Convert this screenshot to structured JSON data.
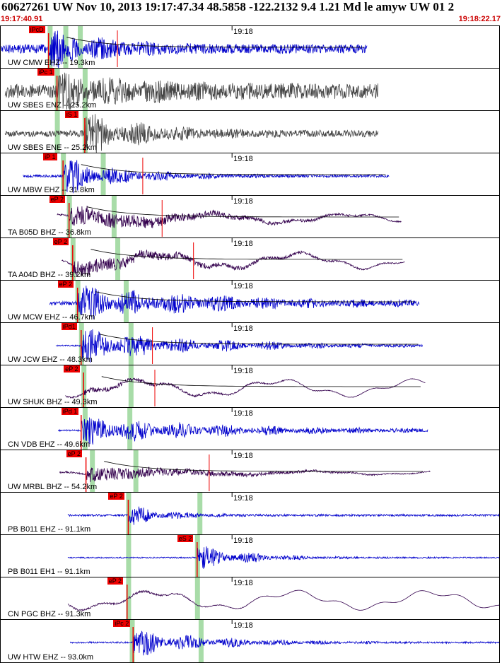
{
  "header": {
    "title": "60627261 UW Nov 10, 2013 19:17:47.34    48.5858 -122.2132  9.4 1.21 Md le amyw UW 01    2",
    "start_time": "19:17:40.91",
    "end_time": "19:18:22.17"
  },
  "colors": {
    "blue_trace": "#0000cc",
    "purple_trace": "#33004d",
    "gray_trace": "#444444",
    "phase_pick": "#ee0000",
    "green_marker": "#a8dca8",
    "coda_line": "#000000"
  },
  "traces": [
    {
      "label": "UW CMW EHZ -- 19.3km",
      "phase": "iPcD",
      "minute_label": "19:18",
      "color": "blue",
      "style": "noise",
      "pick_t": 3.9,
      "start_t": 0.0,
      "end_t": 30.3,
      "amp": 0.35,
      "burst": 1.0,
      "decay": 4.5,
      "greens": [
        4.0,
        5.3,
        6.5
      ],
      "red_tick_t": 9.6,
      "coda": true,
      "max_t": 7.5
    },
    {
      "label": "UW SBES ENZ -- 25.2km",
      "phase": "iPc 1",
      "minute_label": "",
      "color": "gray",
      "style": "noise",
      "pick_t": 4.6,
      "start_t": 0.3,
      "end_t": 31.2,
      "amp": 0.55,
      "burst": 0.7,
      "decay": 9.0,
      "greens": [
        4.6,
        6.9
      ],
      "red_tick_t": null,
      "coda": false,
      "max_t": 7.0
    },
    {
      "label": "UW SBES ENE -- 25.2km",
      "phase": "iS 1",
      "minute_label": "",
      "color": "gray",
      "style": "noise",
      "pick_t": 6.9,
      "start_t": 0.3,
      "end_t": 31.2,
      "amp": 0.25,
      "burst": 1.1,
      "decay": 5.0,
      "greens": [
        4.6,
        6.9
      ],
      "red_tick_t": null,
      "coda": false,
      "max_t": 7.5
    },
    {
      "label": "UW MBW EHZ -- 31.8km",
      "phase": "iP 1",
      "minute_label": "19:18",
      "color": "blue",
      "style": "noise",
      "pick_t": 5.1,
      "start_t": 1.8,
      "end_t": 32.1,
      "amp": 0.1,
      "burst": 1.0,
      "decay": 5.0,
      "greens": [
        5.1,
        8.4
      ],
      "red_tick_t": 11.7,
      "coda": true,
      "max_t": 8.8
    },
    {
      "label": "TA B05D BHZ -- 36.8km",
      "phase": "eP 2",
      "minute_label": "19:18",
      "color": "purple",
      "style": "wave",
      "pick_t": 5.6,
      "start_t": 4.6,
      "end_t": 33.1,
      "amp": 0.3,
      "burst": 0.75,
      "decay": 10.0,
      "greens": [
        5.6,
        9.3
      ],
      "red_tick_t": 13.3,
      "coda": true,
      "max_t": 10.0
    },
    {
      "label": "TA A04D BHZ -- 39.2km",
      "phase": "eP 2",
      "minute_label": "19:18",
      "color": "purple",
      "style": "wave",
      "pick_t": 5.9,
      "start_t": 5.0,
      "end_t": 33.4,
      "amp": 0.5,
      "burst": 0.6,
      "decay": 10.0,
      "greens": [
        5.9,
        9.6
      ],
      "red_tick_t": 15.9,
      "coda": true,
      "max_t": 13.7
    },
    {
      "label": "UW MCW EHZ -- 46.7km",
      "phase": "eP 2",
      "minute_label": "19:18",
      "color": "blue",
      "style": "noise",
      "pick_t": 6.3,
      "start_t": 4.0,
      "end_t": 34.6,
      "amp": 0.15,
      "burst": 0.9,
      "decay": 12.0,
      "greens": [
        6.3,
        10.3
      ],
      "red_tick_t": null,
      "coda": true,
      "max_t": 11.0
    },
    {
      "label": "UW JCW EHZ -- 48.3km",
      "phase": "iPd1",
      "minute_label": "19:18",
      "color": "blue",
      "style": "noise",
      "pick_t": 6.6,
      "start_t": 4.5,
      "end_t": 34.9,
      "amp": 0.05,
      "burst": 0.95,
      "decay": 10.0,
      "greens": [
        6.6,
        10.7
      ],
      "red_tick_t": 12.5,
      "coda": true,
      "max_t": 10.6
    },
    {
      "label": "UW SHUK BHZ -- 49.3km",
      "phase": "eP 2",
      "minute_label": "19:18",
      "color": "purple",
      "style": "wave",
      "pick_t": 6.8,
      "start_t": 5.3,
      "end_t": 35.1,
      "amp": 0.55,
      "burst": 0.2,
      "decay": 10.0,
      "greens": [
        6.8,
        10.7
      ],
      "red_tick_t": 12.7,
      "coda": true,
      "max_t": 12.6
    },
    {
      "label": "CN VDB EHZ -- 49.6km",
      "phase": "iPd 1",
      "minute_label": "19:18",
      "color": "blue",
      "style": "noise",
      "pick_t": 6.6,
      "start_t": 4.7,
      "end_t": 35.3,
      "amp": 0.06,
      "burst": 0.8,
      "decay": 12.0,
      "greens": [
        6.9,
        10.6
      ],
      "red_tick_t": null,
      "coda": false,
      "max_t": 11.0
    },
    {
      "label": "UW MRBL BHZ -- 54.2km",
      "phase": "eP 2",
      "minute_label": "19:18",
      "color": "purple",
      "style": "wave",
      "pick_t": 7.0,
      "start_t": 4.8,
      "end_t": 35.5,
      "amp": 0.12,
      "burst": 0.55,
      "decay": 10.0,
      "greens": [
        7.5,
        11.1
      ],
      "red_tick_t": 17.2,
      "coda": true,
      "max_t": 11.5
    },
    {
      "label": "PB B011 EHZ -- 91.1km",
      "phase": "eP 2",
      "minute_label": "19:18",
      "color": "blue",
      "style": "noise",
      "pick_t": 10.5,
      "start_t": 5.5,
      "end_t": 41.3,
      "amp": 0.08,
      "burst": 0.6,
      "decay": 3.0,
      "greens": [
        10.5,
        16.4
      ],
      "red_tick_t": null,
      "coda": false,
      "max_t": 16.2
    },
    {
      "label": "PB B011 EH1 -- 91.1km",
      "phase": "eS 2",
      "minute_label": "19:18",
      "color": "blue",
      "style": "noise",
      "pick_t": 16.2,
      "start_t": 5.5,
      "end_t": 41.3,
      "amp": 0.05,
      "burst": 0.7,
      "decay": 4.0,
      "greens": [
        10.5,
        16.2
      ],
      "red_tick_t": null,
      "coda": false,
      "max_t": 16.1
    },
    {
      "label": "CN PGC BHZ -- 91.3km",
      "phase": "eP 2",
      "minute_label": "19:18",
      "color": "purple",
      "style": "wave",
      "pick_t": 10.4,
      "start_t": 5.5,
      "end_t": 41.3,
      "amp": 0.6,
      "burst": 0.1,
      "decay": 6.0,
      "greens": [
        10.5,
        16.2
      ],
      "red_tick_t": null,
      "coda": false,
      "max_t": 16.1
    },
    {
      "label": "UW HTW EHZ -- 93.0km",
      "phase": "iPc 2",
      "minute_label": "19:18",
      "color": "blue",
      "style": "noise",
      "pick_t": 10.9,
      "start_t": 5.7,
      "end_t": 41.3,
      "amp": 0.06,
      "burst": 0.8,
      "decay": 6.0,
      "greens": [
        10.8,
        16.5
      ],
      "red_tick_t": null,
      "coda": false,
      "max_t": 11.0
    }
  ]
}
